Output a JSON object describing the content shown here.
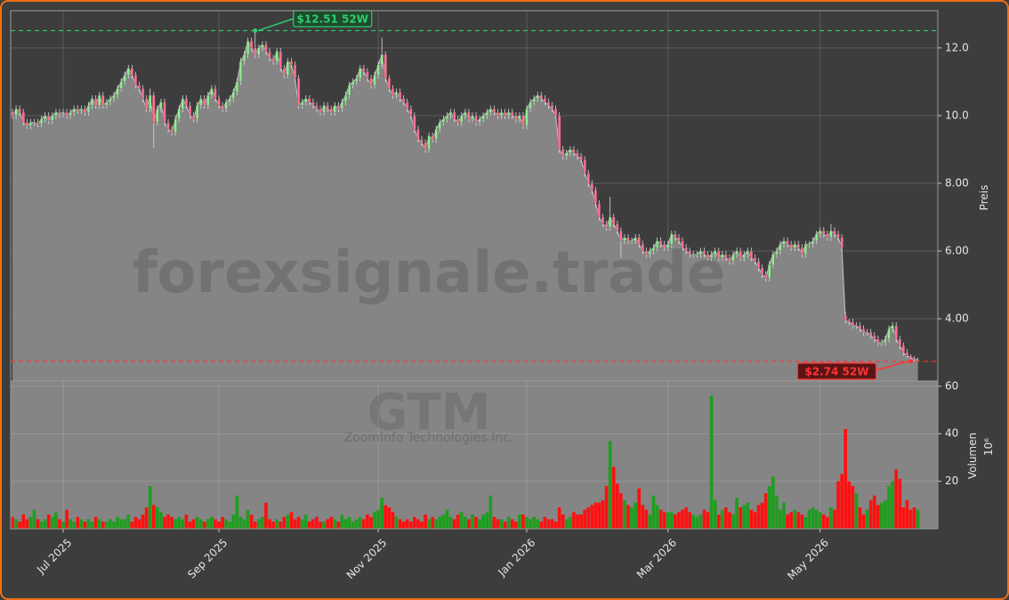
{
  "chart_data": {
    "type": "candlestick",
    "watermark": "forexsignale.trade",
    "ticker": "GTM",
    "company": "ZoomInfo Technologies Inc.",
    "y_label": "Preis",
    "y2_label": "Volumen",
    "y2_unit": "10⁶",
    "up_color": "#90ee90",
    "down_color": "#ff6f91",
    "volume_up_color": "#1e9e1e",
    "volume_down_color": "#ff1010",
    "area_color": "#858585",
    "grid": true,
    "xlim": [
      -0.5,
      255.5
    ],
    "xticks": [
      {
        "value": 14,
        "label": "Jul 2025"
      },
      {
        "value": 57,
        "label": "Sep 2025"
      },
      {
        "value": 101,
        "label": "Nov 2025"
      },
      {
        "value": 142,
        "label": "Jan 2026"
      },
      {
        "value": 181,
        "label": "Mar 2026"
      },
      {
        "value": 223,
        "label": "May 2026"
      }
    ],
    "ylim": [
      2.16,
      13.1
    ],
    "yticks": [
      {
        "value": 4,
        "label": "4.00"
      },
      {
        "value": 6,
        "label": "6.00"
      },
      {
        "value": 8,
        "label": "8.00"
      },
      {
        "value": 10,
        "label": "10.0"
      },
      {
        "value": 12,
        "label": "12.0"
      }
    ],
    "y2lim": [
      0,
      62.2
    ],
    "y2ticks": [
      20,
      40,
      60
    ],
    "high_line": {
      "value": 12.51,
      "label": "$12.51 52W",
      "color": "#2ecc71"
    },
    "low_line": {
      "value": 2.74,
      "label": "$2.74 52W",
      "color": "#ff3333"
    },
    "x": [
      0,
      1,
      2,
      3,
      4,
      5,
      6,
      7,
      8,
      9,
      10,
      11,
      12,
      13,
      14,
      15,
      16,
      17,
      18,
      19,
      20,
      21,
      22,
      23,
      24,
      25,
      26,
      27,
      28,
      29,
      30,
      31,
      32,
      33,
      34,
      35,
      36,
      37,
      38,
      39,
      40,
      41,
      42,
      43,
      44,
      45,
      46,
      47,
      48,
      49,
      50,
      51,
      52,
      53,
      54,
      55,
      56,
      57,
      58,
      59,
      60,
      61,
      62,
      63,
      64,
      65,
      66,
      67,
      68,
      69,
      70,
      71,
      72,
      73,
      74,
      75,
      76,
      77,
      78,
      79,
      80,
      81,
      82,
      83,
      84,
      85,
      86,
      87,
      88,
      89,
      90,
      91,
      92,
      93,
      94,
      95,
      96,
      97,
      98,
      99,
      100,
      101,
      102,
      103,
      104,
      105,
      106,
      107,
      108,
      109,
      110,
      111,
      112,
      113,
      114,
      115,
      116,
      117,
      118,
      119,
      120,
      121,
      122,
      123,
      124,
      125,
      126,
      127,
      128,
      129,
      130,
      131,
      132,
      133,
      134,
      135,
      136,
      137,
      138,
      139,
      140,
      141,
      142,
      143,
      144,
      145,
      146,
      147,
      148,
      149,
      150,
      151,
      152,
      153,
      154,
      155,
      156,
      157,
      158,
      159,
      160,
      161,
      162,
      163,
      164,
      165,
      166,
      167,
      168,
      169,
      170,
      171,
      172,
      173,
      174,
      175,
      176,
      177,
      178,
      179,
      180,
      181,
      182,
      183,
      184,
      185,
      186,
      187,
      188,
      189,
      190,
      191,
      192,
      193,
      194,
      195,
      196,
      197,
      198,
      199,
      200,
      201,
      202,
      203,
      204,
      205,
      206,
      207,
      208,
      209,
      210,
      211,
      212,
      213,
      214,
      215,
      216,
      217,
      218,
      219,
      220,
      221,
      222,
      223,
      224,
      225,
      226,
      227,
      228,
      229,
      230,
      231,
      232,
      233,
      234,
      235,
      236,
      237,
      238,
      239,
      240,
      241,
      242,
      243,
      244,
      245,
      246,
      247,
      248,
      249,
      250
    ],
    "open": [
      10.1,
      10.0,
      10.2,
      10.1,
      9.8,
      9.7,
      9.8,
      9.8,
      9.75,
      9.9,
      10.0,
      9.85,
      10.0,
      10.1,
      10.05,
      10.1,
      10.0,
      10.1,
      10.2,
      10.15,
      10.2,
      10.1,
      10.3,
      10.5,
      10.3,
      10.6,
      10.3,
      10.4,
      10.5,
      10.6,
      10.8,
      11.0,
      11.2,
      11.4,
      11.2,
      10.9,
      10.8,
      10.5,
      10.2,
      10.6,
      9.8,
      10.2,
      10.4,
      9.8,
      9.6,
      9.5,
      9.9,
      10.2,
      10.5,
      10.3,
      10.0,
      9.9,
      10.3,
      10.5,
      10.3,
      10.6,
      10.8,
      10.5,
      10.3,
      10.2,
      10.4,
      10.5,
      10.7,
      11.0,
      11.6,
      11.8,
      12.2,
      12.0,
      11.8,
      12.0,
      12.1,
      11.9,
      11.7,
      11.6,
      11.9,
      11.4,
      11.2,
      11.6,
      11.5,
      11.1,
      10.3,
      10.4,
      10.5,
      10.4,
      10.3,
      10.2,
      10.1,
      10.3,
      10.2,
      10.1,
      10.3,
      10.2,
      10.4,
      10.6,
      10.9,
      11.0,
      11.1,
      11.4,
      11.3,
      11.1,
      10.9,
      11.2,
      11.5,
      11.8,
      11.1,
      10.8,
      10.6,
      10.7,
      10.5,
      10.4,
      10.2,
      10.0,
      9.6,
      9.3,
      9.2,
      9.0,
      9.4,
      9.3,
      9.6,
      9.8,
      9.9,
      10.0,
      10.1,
      9.9,
      9.8,
      10.0,
      10.1,
      9.9,
      10.0,
      9.8,
      9.9,
      10.0,
      10.1,
      10.2,
      10.1,
      10.0,
      10.1,
      10.0,
      10.1,
      10.0,
      9.9,
      10.0,
      9.7,
      10.2,
      10.4,
      10.5,
      10.6,
      10.5,
      10.4,
      10.3,
      10.2,
      10.0,
      9.0,
      8.8,
      8.9,
      9.0,
      8.9,
      8.8,
      8.7,
      8.3,
      8.0,
      7.8,
      7.4,
      7.0,
      6.8,
      6.7,
      7.0,
      6.8,
      6.6,
      6.3,
      6.4,
      6.3,
      6.3,
      6.4,
      6.2,
      6.0,
      5.9,
      6.0,
      6.1,
      6.3,
      6.2,
      6.1,
      6.2,
      6.5,
      6.4,
      6.3,
      6.1,
      6.0,
      5.9,
      5.9,
      5.9,
      6.0,
      5.9,
      5.8,
      5.9,
      6.0,
      5.8,
      5.9,
      5.8,
      5.7,
      5.9,
      6.0,
      5.8,
      5.9,
      6.0,
      5.8,
      5.7,
      5.5,
      5.3,
      5.2,
      5.6,
      5.9,
      6.0,
      6.2,
      6.3,
      6.2,
      6.1,
      6.2,
      6.1,
      5.9,
      6.2,
      6.2,
      6.3,
      6.5,
      6.6,
      6.5,
      6.4,
      6.6,
      6.5,
      6.4,
      4.1,
      3.95,
      3.9,
      3.8,
      3.8,
      3.7,
      3.6,
      3.6,
      3.5,
      3.4,
      3.3,
      3.3,
      3.4,
      3.7,
      3.8,
      3.4,
      3.2,
      3.0,
      2.9,
      2.85,
      2.8
    ],
    "high": [
      10.2,
      10.3,
      10.3,
      10.2,
      9.9,
      9.9,
      9.9,
      9.9,
      10.0,
      10.1,
      10.1,
      10.1,
      10.2,
      10.2,
      10.2,
      10.2,
      10.2,
      10.3,
      10.3,
      10.3,
      10.3,
      10.4,
      10.6,
      10.6,
      10.7,
      10.7,
      10.5,
      10.6,
      10.7,
      10.9,
      11.1,
      11.3,
      11.5,
      11.5,
      11.3,
      11.0,
      10.9,
      10.6,
      10.8,
      10.7,
      10.3,
      10.5,
      10.5,
      9.9,
      9.7,
      10.0,
      10.3,
      10.6,
      10.6,
      10.4,
      10.1,
      10.4,
      10.6,
      10.6,
      10.7,
      10.9,
      10.9,
      10.6,
      10.4,
      10.5,
      10.6,
      10.8,
      11.1,
      11.7,
      11.9,
      12.3,
      12.3,
      12.51,
      12.1,
      12.2,
      12.2,
      12.0,
      11.8,
      12.0,
      12.0,
      11.5,
      11.7,
      11.7,
      11.6,
      11.2,
      10.5,
      10.6,
      10.6,
      10.5,
      10.4,
      10.3,
      10.4,
      10.4,
      10.3,
      10.4,
      10.4,
      10.5,
      10.7,
      11.0,
      11.1,
      11.2,
      11.5,
      11.5,
      11.4,
      11.2,
      11.3,
      11.6,
      12.3,
      11.9,
      11.2,
      10.9,
      10.8,
      10.8,
      10.6,
      10.5,
      10.3,
      10.1,
      9.7,
      9.4,
      9.3,
      9.5,
      9.5,
      9.7,
      9.9,
      10.0,
      10.1,
      10.2,
      10.2,
      10.0,
      10.1,
      10.2,
      10.2,
      10.1,
      10.1,
      10.0,
      10.1,
      10.2,
      10.3,
      10.3,
      10.2,
      10.2,
      10.2,
      10.2,
      10.2,
      10.1,
      10.1,
      10.1,
      10.3,
      10.5,
      10.6,
      10.7,
      10.7,
      10.6,
      10.5,
      10.4,
      10.3,
      10.1,
      9.1,
      9.0,
      9.1,
      9.1,
      9.0,
      8.9,
      8.8,
      8.4,
      8.1,
      7.9,
      7.5,
      7.1,
      6.9,
      7.6,
      7.1,
      6.9,
      6.7,
      6.5,
      6.5,
      6.4,
      6.5,
      6.5,
      6.3,
      6.1,
      6.1,
      6.2,
      6.4,
      6.4,
      6.3,
      6.3,
      6.6,
      6.6,
      6.5,
      6.4,
      6.2,
      6.1,
      6.0,
      6.0,
      6.1,
      6.1,
      6.0,
      6.0,
      6.1,
      6.1,
      6.0,
      6.0,
      5.9,
      6.0,
      6.1,
      6.1,
      6.0,
      6.1,
      6.1,
      5.9,
      5.8,
      5.6,
      5.4,
      5.7,
      6.0,
      6.1,
      6.3,
      6.4,
      6.4,
      6.3,
      6.3,
      6.3,
      6.2,
      6.3,
      6.3,
      6.4,
      6.6,
      6.7,
      6.7,
      6.6,
      6.8,
      6.7,
      6.6,
      6.5,
      4.2,
      4.0,
      4.0,
      3.9,
      3.9,
      3.8,
      3.7,
      3.7,
      3.6,
      3.5,
      3.4,
      3.5,
      3.8,
      3.9,
      3.9,
      3.5,
      3.3,
      3.1,
      2.95,
      2.9,
      2.85
    ],
    "low": [
      9.9,
      9.9,
      10.0,
      9.7,
      9.6,
      9.6,
      9.7,
      9.65,
      9.65,
      9.8,
      9.75,
      9.75,
      9.9,
      9.95,
      9.95,
      9.9,
      9.9,
      10.0,
      10.05,
      10.05,
      10.0,
      10.0,
      10.2,
      10.2,
      10.2,
      10.2,
      10.2,
      10.3,
      10.4,
      10.5,
      10.7,
      10.9,
      11.1,
      11.1,
      10.8,
      10.7,
      10.4,
      10.1,
      10.1,
      9.05,
      9.7,
      10.1,
      9.7,
      9.5,
      9.4,
      9.4,
      9.8,
      10.1,
      10.2,
      9.9,
      9.8,
      9.8,
      10.2,
      10.2,
      10.2,
      10.5,
      10.4,
      10.2,
      10.1,
      10.1,
      10.3,
      10.4,
      10.6,
      10.9,
      11.5,
      11.7,
      11.9,
      11.7,
      11.7,
      11.9,
      11.8,
      11.6,
      11.5,
      11.5,
      11.3,
      11.1,
      11.1,
      11.4,
      11.0,
      10.2,
      10.2,
      10.3,
      10.3,
      10.2,
      10.1,
      10.0,
      10.0,
      10.1,
      10.0,
      10.0,
      10.1,
      10.1,
      10.3,
      10.5,
      10.8,
      10.9,
      11.0,
      11.2,
      11.0,
      10.8,
      10.8,
      11.1,
      11.4,
      11.0,
      10.7,
      10.5,
      10.5,
      10.4,
      10.3,
      10.1,
      9.9,
      9.5,
      9.2,
      9.1,
      8.9,
      8.9,
      9.2,
      9.2,
      9.5,
      9.7,
      9.8,
      9.9,
      9.8,
      9.7,
      9.7,
      9.9,
      9.8,
      9.8,
      9.7,
      9.7,
      9.8,
      9.9,
      10.0,
      10.0,
      9.9,
      9.9,
      9.9,
      9.9,
      9.9,
      9.8,
      9.8,
      9.6,
      9.6,
      10.1,
      10.3,
      10.4,
      10.4,
      10.3,
      10.2,
      10.1,
      9.9,
      8.9,
      8.7,
      8.7,
      8.8,
      8.8,
      8.7,
      8.6,
      8.2,
      7.9,
      7.7,
      7.3,
      6.9,
      6.7,
      6.6,
      6.6,
      6.7,
      6.5,
      5.8,
      6.2,
      6.2,
      6.2,
      6.2,
      6.1,
      5.9,
      5.8,
      5.8,
      5.9,
      6.0,
      6.1,
      6.0,
      6.0,
      6.1,
      6.3,
      6.2,
      6.0,
      5.9,
      5.8,
      5.8,
      5.8,
      5.8,
      5.8,
      5.7,
      5.7,
      5.8,
      5.7,
      5.7,
      5.7,
      5.6,
      5.6,
      5.8,
      5.7,
      5.7,
      5.8,
      5.7,
      5.6,
      5.4,
      5.2,
      5.1,
      5.1,
      5.5,
      5.8,
      5.9,
      6.1,
      6.1,
      6.0,
      6.0,
      6.0,
      5.8,
      5.8,
      6.1,
      6.1,
      6.2,
      6.4,
      6.4,
      6.3,
      6.3,
      6.4,
      6.3,
      6.0,
      3.85,
      3.8,
      3.7,
      3.7,
      3.6,
      3.5,
      3.5,
      3.4,
      3.3,
      3.2,
      3.2,
      3.2,
      3.3,
      3.6,
      3.3,
      3.1,
      2.9,
      2.85,
      2.74,
      2.75,
      2.75
    ],
    "close": [
      10.0,
      10.2,
      10.1,
      9.8,
      9.7,
      9.8,
      9.8,
      9.75,
      9.9,
      10.0,
      9.85,
      10.0,
      10.1,
      10.05,
      10.1,
      10.0,
      10.1,
      10.2,
      10.15,
      10.2,
      10.1,
      10.3,
      10.5,
      10.3,
      10.6,
      10.3,
      10.4,
      10.5,
      10.6,
      10.8,
      11.0,
      11.2,
      11.4,
      11.2,
      10.9,
      10.8,
      10.5,
      10.2,
      10.6,
      9.8,
      10.2,
      10.4,
      9.8,
      9.6,
      9.5,
      9.9,
      10.2,
      10.5,
      10.3,
      10.0,
      9.9,
      10.3,
      10.5,
      10.3,
      10.6,
      10.8,
      10.5,
      10.3,
      10.2,
      10.4,
      10.5,
      10.7,
      11.0,
      11.6,
      11.8,
      12.2,
      12.0,
      11.8,
      12.0,
      12.1,
      11.9,
      11.7,
      11.6,
      11.9,
      11.4,
      11.2,
      11.6,
      11.5,
      11.1,
      10.3,
      10.4,
      10.5,
      10.4,
      10.3,
      10.2,
      10.1,
      10.3,
      10.2,
      10.1,
      10.3,
      10.2,
      10.4,
      10.6,
      10.9,
      11.0,
      11.1,
      11.4,
      11.3,
      11.1,
      10.9,
      11.2,
      11.5,
      11.8,
      11.1,
      10.8,
      10.6,
      10.7,
      10.5,
      10.4,
      10.2,
      10.0,
      9.6,
      9.3,
      9.2,
      9.0,
      9.4,
      9.3,
      9.6,
      9.8,
      9.9,
      10.0,
      10.1,
      9.9,
      9.8,
      10.0,
      10.1,
      9.9,
      10.0,
      9.8,
      9.9,
      10.0,
      10.1,
      10.2,
      10.1,
      10.0,
      10.1,
      10.0,
      10.1,
      10.0,
      9.9,
      10.0,
      9.7,
      10.2,
      10.4,
      10.5,
      10.6,
      10.5,
      10.4,
      10.3,
      10.2,
      10.0,
      9.0,
      8.8,
      8.9,
      9.0,
      8.9,
      8.8,
      8.7,
      8.3,
      8.0,
      7.8,
      7.4,
      7.0,
      6.8,
      6.7,
      7.0,
      6.8,
      6.6,
      6.3,
      6.4,
      6.3,
      6.3,
      6.4,
      6.2,
      6.0,
      5.9,
      6.0,
      6.1,
      6.3,
      6.2,
      6.1,
      6.2,
      6.5,
      6.4,
      6.3,
      6.1,
      6.0,
      5.9,
      5.9,
      5.9,
      6.0,
      5.9,
      5.8,
      5.9,
      6.0,
      5.8,
      5.9,
      5.8,
      5.7,
      5.9,
      6.0,
      5.8,
      5.9,
      6.0,
      5.8,
      5.7,
      5.5,
      5.3,
      5.2,
      5.6,
      5.9,
      6.0,
      6.2,
      6.3,
      6.2,
      6.1,
      6.2,
      6.1,
      5.9,
      6.2,
      6.2,
      6.3,
      6.5,
      6.6,
      6.5,
      6.4,
      6.6,
      6.5,
      6.4,
      6.1,
      3.95,
      3.9,
      3.8,
      3.8,
      3.7,
      3.6,
      3.6,
      3.5,
      3.4,
      3.3,
      3.3,
      3.4,
      3.7,
      3.8,
      3.4,
      3.2,
      3.0,
      2.9,
      2.85,
      2.8,
      2.8
    ],
    "volume": [
      5,
      4,
      3,
      6,
      4,
      5,
      8,
      4,
      3,
      4,
      6,
      5,
      7,
      4,
      3,
      8,
      4,
      3,
      5,
      4,
      3,
      4,
      3,
      5,
      4,
      3,
      3,
      4,
      3,
      5,
      4,
      4,
      6,
      3,
      5,
      4,
      6,
      9,
      18,
      10,
      9,
      7,
      5,
      6,
      5,
      4,
      5,
      4,
      6,
      3,
      4,
      5,
      4,
      3,
      4,
      5,
      4,
      3,
      5,
      4,
      3,
      6,
      14,
      5,
      4,
      8,
      6,
      3,
      4,
      5,
      11,
      4,
      3,
      4,
      3,
      5,
      6,
      7,
      4,
      5,
      4,
      6,
      3,
      4,
      5,
      3,
      3,
      4,
      5,
      4,
      3,
      6,
      4,
      5,
      3,
      4,
      5,
      4,
      6,
      5,
      7,
      8,
      13,
      10,
      9,
      7,
      5,
      4,
      3,
      4,
      3,
      5,
      4,
      3,
      6,
      4,
      5,
      4,
      5,
      6,
      8,
      5,
      4,
      6,
      7,
      5,
      4,
      6,
      5,
      4,
      6,
      7,
      14,
      5,
      4,
      4,
      3,
      5,
      4,
      3,
      6,
      6,
      5,
      4,
      5,
      4,
      3,
      5,
      4,
      4,
      3,
      9,
      6,
      4,
      5,
      7,
      6,
      6,
      8,
      9,
      10,
      11,
      11,
      12,
      18,
      37,
      26,
      19,
      15,
      12,
      10,
      9,
      11,
      17,
      10,
      8,
      6,
      14,
      10,
      8,
      7,
      7,
      7,
      6,
      7,
      8,
      9,
      7,
      6,
      5,
      6,
      8,
      7,
      56,
      12,
      6,
      8,
      9,
      7,
      6,
      13,
      9,
      10,
      11,
      8,
      7,
      10,
      11,
      15,
      18,
      22,
      14,
      8,
      11,
      6,
      7,
      8,
      7,
      6,
      5,
      8,
      9,
      8,
      7,
      6,
      5,
      9,
      8,
      20,
      23,
      42,
      20,
      18,
      15,
      9,
      6,
      8,
      12,
      14,
      10,
      11,
      12,
      18,
      20,
      25,
      21,
      9,
      12,
      8,
      9,
      8
    ]
  }
}
